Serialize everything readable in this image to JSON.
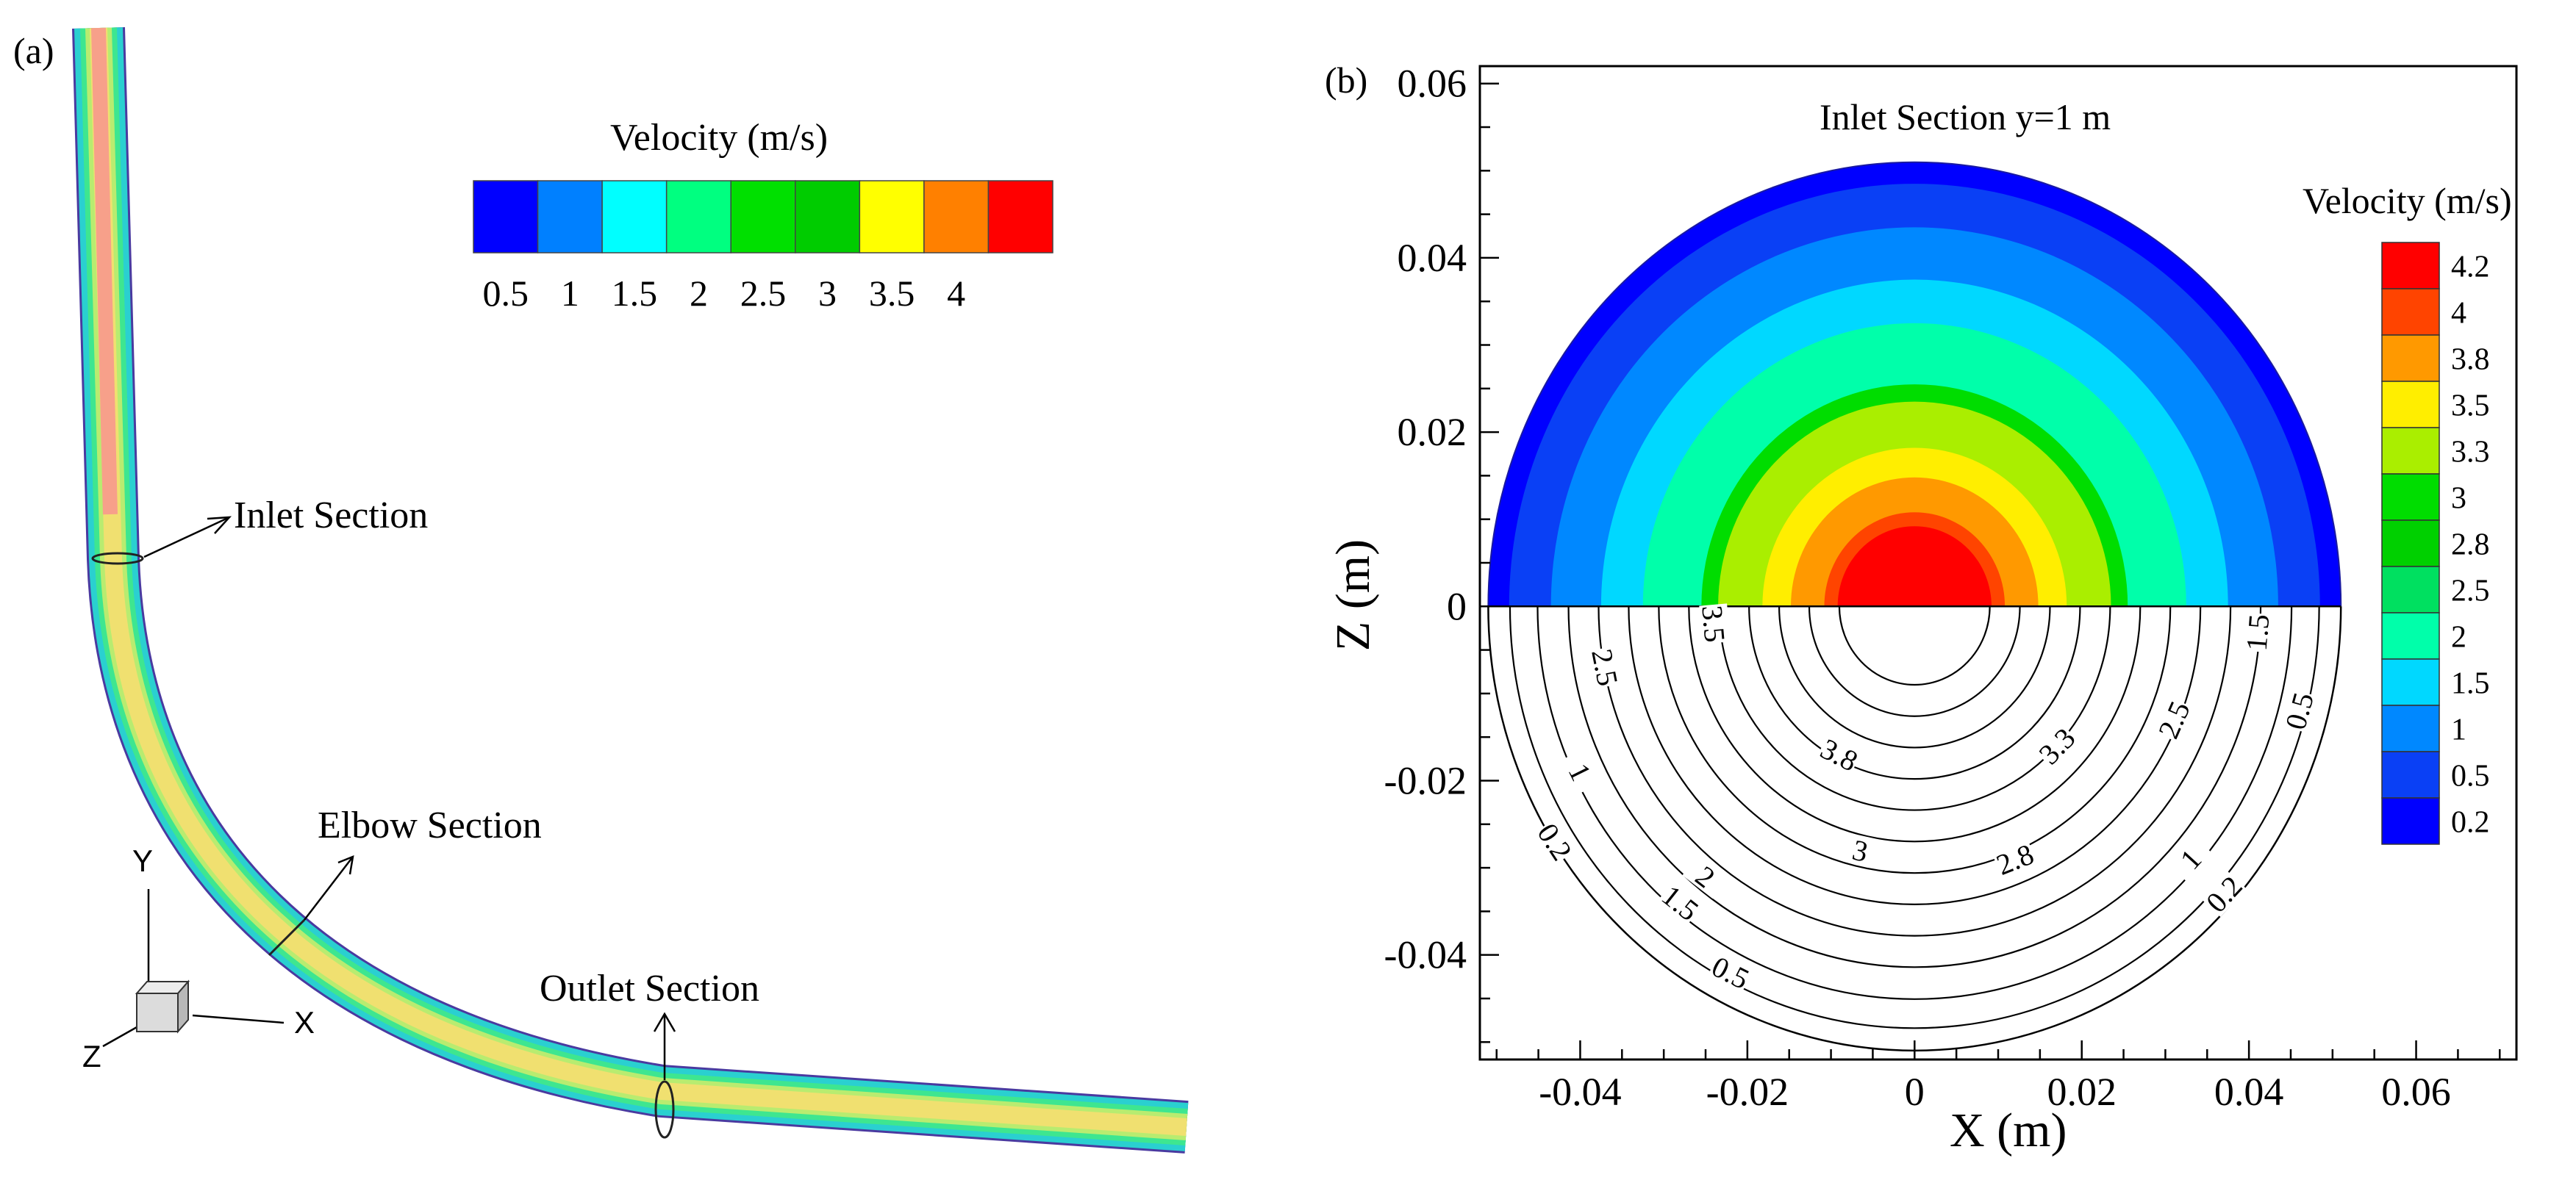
{
  "chart_data": [
    {
      "type": "other",
      "panel_label": "(a)",
      "description_labels": {
        "inlet": "Inlet Section",
        "elbow": "Elbow Section",
        "outlet": "Outlet Section"
      },
      "axes_triad": {
        "x": "X",
        "y": "Y",
        "z": "Z"
      },
      "legend": {
        "title": "Velocity (m/s)",
        "colors": [
          "#0000ff",
          "#0080ff",
          "#00ffff",
          "#00ff80",
          "#00e000",
          "#00cc00",
          "#ffff00",
          "#ff8000",
          "#ff0000"
        ],
        "tick_labels": [
          "0.5",
          "1",
          "1.5",
          "2",
          "2.5",
          "3",
          "3.5",
          "4"
        ]
      },
      "pipe_colors": {
        "outer": "#2ad0d0",
        "band1": "#3ee690",
        "band2": "#b8ec70",
        "band3": "#f0e070",
        "core": "#f7a08a"
      }
    },
    {
      "type": "contour",
      "panel_label": "(b)",
      "title": "Inlet Section y=1 m",
      "xlabel": "X (m)",
      "ylabel": "Z (m)",
      "xlim": [
        -0.052,
        0.072
      ],
      "ylim": [
        -0.052,
        0.062
      ],
      "x_ticks": [
        -0.04,
        -0.02,
        0,
        0.02,
        0.04,
        0.06
      ],
      "x_tick_labels": [
        "-0.04",
        "-0.02",
        "0",
        "0.02",
        "0.04",
        "0.06"
      ],
      "y_ticks": [
        -0.04,
        -0.02,
        0,
        0.02,
        0.04,
        0.06
      ],
      "y_tick_labels": [
        "-0.04",
        "-0.02",
        "0",
        "0.02",
        "0.04",
        "0.06"
      ],
      "pipe_radius": 0.051,
      "filled_levels": [
        {
          "r": 0.051,
          "color": "#0000ff"
        },
        {
          "r": 0.0485,
          "color": "#0a40f5"
        },
        {
          "r": 0.0435,
          "color": "#0088ff"
        },
        {
          "r": 0.0375,
          "color": "#00d8ff"
        },
        {
          "r": 0.0325,
          "color": "#00ffaa"
        },
        {
          "r": 0.0255,
          "color": "#00dd00"
        },
        {
          "r": 0.0235,
          "color": "#aaee00"
        },
        {
          "r": 0.0182,
          "color": "#ffee00"
        },
        {
          "r": 0.0148,
          "color": "#ff9900"
        },
        {
          "r": 0.0108,
          "color": "#ff4400"
        },
        {
          "r": 0.0092,
          "color": "#ff0000"
        }
      ],
      "contour_lines": [
        {
          "r": 0.0484,
          "label": "0.2"
        },
        {
          "r": 0.0451,
          "label": "0.5"
        },
        {
          "r": 0.0414,
          "label": "1"
        },
        {
          "r": 0.0378,
          "label": "1.5"
        },
        {
          "r": 0.0342,
          "label": "2"
        },
        {
          "r": 0.0306,
          "label": "2.5"
        },
        {
          "r": 0.027,
          "label": "2.8"
        },
        {
          "r": 0.0234,
          "label": "3"
        },
        {
          "r": 0.0198,
          "label": "3.3"
        },
        {
          "r": 0.0162,
          "label": "3.5"
        },
        {
          "r": 0.0126,
          "label": "3.8"
        },
        {
          "r": 0.009,
          "label": ""
        }
      ],
      "contour_label_marks": [
        {
          "label": "3.5",
          "x": -0.024,
          "y": -0.002
        },
        {
          "label": "2.5",
          "x": -0.037,
          "y": -0.007
        },
        {
          "label": "3.8",
          "x": -0.009,
          "y": -0.017
        },
        {
          "label": "3.3",
          "x": 0.017,
          "y": -0.016
        },
        {
          "label": "2.5",
          "x": 0.031,
          "y": -0.013
        },
        {
          "label": "1.5",
          "x": 0.041,
          "y": -0.003
        },
        {
          "label": "0.5",
          "x": 0.046,
          "y": -0.012
        },
        {
          "label": "1",
          "x": -0.04,
          "y": -0.019
        },
        {
          "label": "0.2",
          "x": -0.043,
          "y": -0.027
        },
        {
          "label": "3",
          "x": -0.0065,
          "y": -0.028
        },
        {
          "label": "2.8",
          "x": 0.012,
          "y": -0.029
        },
        {
          "label": "2",
          "x": -0.025,
          "y": -0.031
        },
        {
          "label": "1.5",
          "x": -0.028,
          "y": -0.034
        },
        {
          "label": "1",
          "x": 0.033,
          "y": -0.029
        },
        {
          "label": "0.2",
          "x": 0.037,
          "y": -0.033
        },
        {
          "label": "0.5",
          "x": -0.022,
          "y": -0.042
        }
      ],
      "legend": {
        "title": "Velocity (m/s)",
        "entries": [
          {
            "label": "4.2",
            "color": "#ff0000"
          },
          {
            "label": "4",
            "color": "#ff4400"
          },
          {
            "label": "3.8",
            "color": "#ff9900"
          },
          {
            "label": "3.5",
            "color": "#ffee00"
          },
          {
            "label": "3.3",
            "color": "#aaee00"
          },
          {
            "label": "3",
            "color": "#00dd00"
          },
          {
            "label": "2.8",
            "color": "#00d000"
          },
          {
            "label": "2.5",
            "color": "#00e060"
          },
          {
            "label": "2",
            "color": "#00ffaa"
          },
          {
            "label": "1.5",
            "color": "#00d8ff"
          },
          {
            "label": "1",
            "color": "#0088ff"
          },
          {
            "label": "0.5",
            "color": "#0a40f5"
          },
          {
            "label": "0.2",
            "color": "#0000ff"
          }
        ]
      }
    }
  ]
}
